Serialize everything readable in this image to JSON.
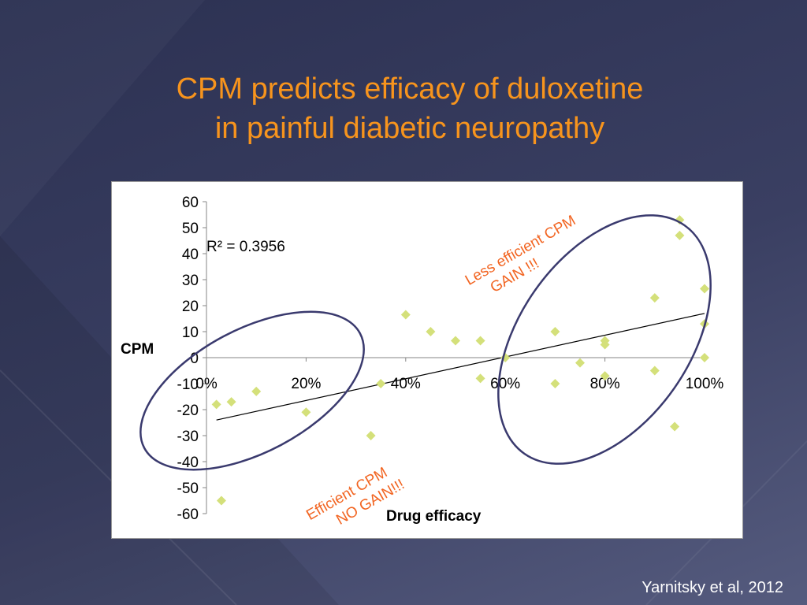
{
  "slide": {
    "title_line1": "CPM predicts efficacy of duloxetine",
    "title_line2": "in painful diabetic neuropathy",
    "citation": "Yarnitsky et al, 2012",
    "colors": {
      "title": "#f7941d",
      "point": "#d4e07a",
      "ellipse": "#3a3a6e",
      "annotation": "#f26522"
    }
  },
  "chart_data": {
    "type": "scatter",
    "xlabel": "Drug efficacy",
    "ylabel": "CPM",
    "xlim": [
      0,
      1
    ],
    "ylim": [
      -60,
      60
    ],
    "x_tick_labels": [
      "0%",
      "20%",
      "40%",
      "60%",
      "80%",
      "100%"
    ],
    "x_tick_values": [
      0,
      0.2,
      0.4,
      0.6,
      0.8,
      1.0
    ],
    "y_tick_values": [
      60,
      50,
      40,
      30,
      20,
      10,
      0,
      -10,
      -20,
      -30,
      -40,
      -50,
      -60
    ],
    "r_squared_label": "R² = 0.3956",
    "trendline": {
      "x": [
        0.02,
        1.0
      ],
      "y": [
        -24,
        17
      ]
    },
    "points": [
      {
        "x": 0.02,
        "y": -18
      },
      {
        "x": 0.03,
        "y": -55
      },
      {
        "x": 0.05,
        "y": -17
      },
      {
        "x": 0.1,
        "y": -13
      },
      {
        "x": 0.2,
        "y": -21
      },
      {
        "x": 0.33,
        "y": -30
      },
      {
        "x": 0.35,
        "y": -10
      },
      {
        "x": 0.4,
        "y": 16.5
      },
      {
        "x": 0.45,
        "y": 10
      },
      {
        "x": 0.5,
        "y": 6.5
      },
      {
        "x": 0.55,
        "y": 6.5
      },
      {
        "x": 0.55,
        "y": -8
      },
      {
        "x": 0.6,
        "y": 0
      },
      {
        "x": 0.7,
        "y": 10
      },
      {
        "x": 0.7,
        "y": -10
      },
      {
        "x": 0.75,
        "y": -2
      },
      {
        "x": 0.8,
        "y": 6.5
      },
      {
        "x": 0.8,
        "y": 5
      },
      {
        "x": 0.8,
        "y": -7
      },
      {
        "x": 0.9,
        "y": 23
      },
      {
        "x": 0.9,
        "y": -5
      },
      {
        "x": 0.94,
        "y": -26.5
      },
      {
        "x": 0.95,
        "y": 53
      },
      {
        "x": 0.95,
        "y": 47
      },
      {
        "x": 1.0,
        "y": 26.5
      },
      {
        "x": 1.0,
        "y": 13
      },
      {
        "x": 1.0,
        "y": 0
      }
    ],
    "annotations": [
      {
        "id": "less-efficient",
        "line1": "Less efficient CPM",
        "line2": "GAIN !!!"
      },
      {
        "id": "efficient",
        "line1": "Efficient CPM",
        "line2": "NO GAIN!!!"
      }
    ],
    "grid": false,
    "legend": "none"
  }
}
